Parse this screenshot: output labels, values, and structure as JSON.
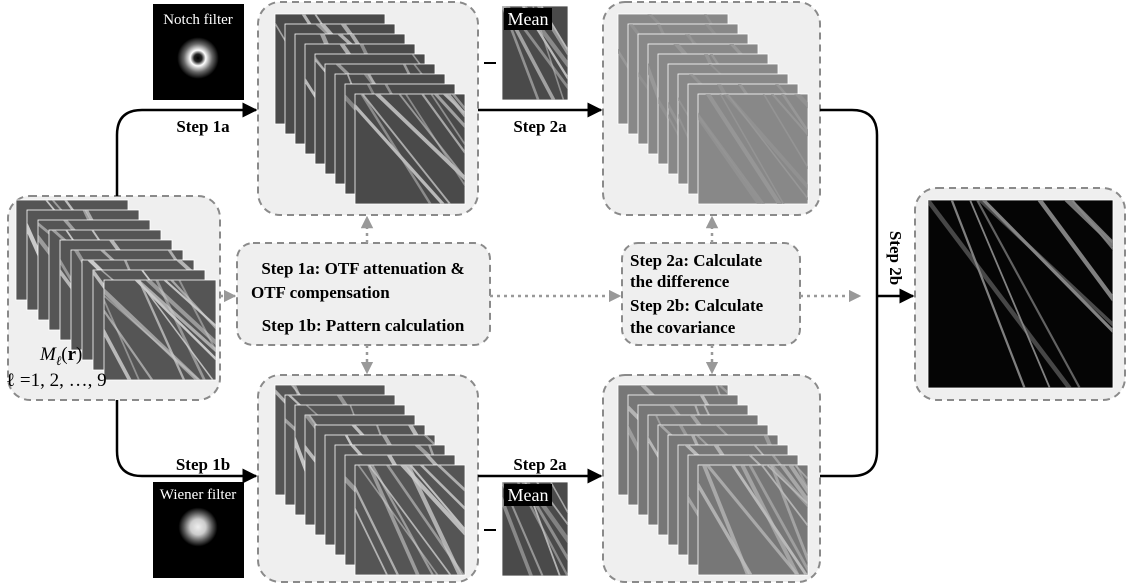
{
  "filters": {
    "notch": "Notch filter",
    "wiener": "Wiener filter"
  },
  "means": {
    "top": "Mean",
    "bottom": "Mean"
  },
  "steps": {
    "step1a": "Step 1a",
    "step1b": "Step 1b",
    "step2a_top": "Step 2a",
    "step2a_bottom": "Step 2a",
    "step2b": "Step 2b"
  },
  "input": {
    "symbol": "M",
    "subscript": "ℓ",
    "open": "(",
    "argument": "r",
    "close": ")",
    "index": "ℓ =1, 2, …, 9"
  },
  "notes": {
    "left": [
      "Step 1a: OTF attenuation &",
      "OTF compensation",
      "Step 1b: Pattern calculation"
    ],
    "right": [
      "Step 2a: Calculate",
      "the difference",
      "Step 2b: Calculate",
      "the covariance"
    ]
  }
}
